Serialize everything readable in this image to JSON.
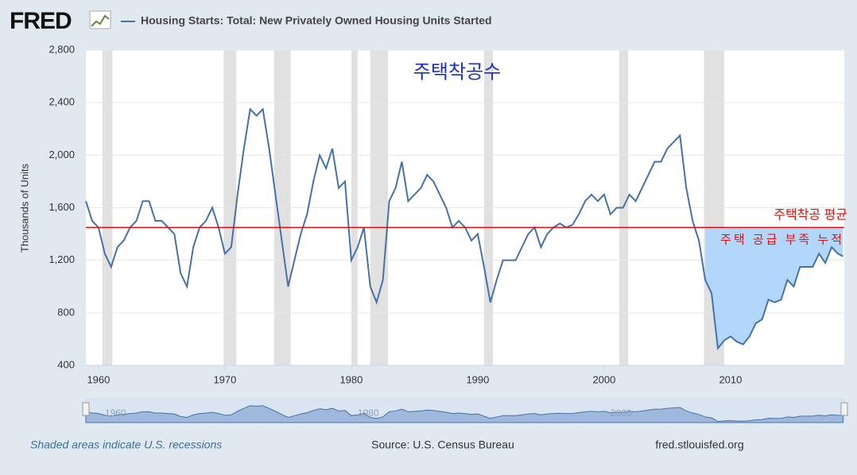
{
  "chart_data": {
    "type": "line",
    "logo": "FRED",
    "series": [
      {
        "name": "Housing Starts: Total: New Privately Owned Housing Units Started",
        "color": "#4572a7",
        "x": [
          1959.0,
          1959.5,
          1960.0,
          1960.5,
          1961.0,
          1961.5,
          1962.0,
          1962.5,
          1963.0,
          1963.5,
          1964.0,
          1964.5,
          1965.0,
          1965.5,
          1966.0,
          1966.5,
          1967.0,
          1967.5,
          1968.0,
          1968.5,
          1969.0,
          1969.5,
          1970.0,
          1970.5,
          1971.0,
          1971.5,
          1972.0,
          1972.5,
          1973.0,
          1973.5,
          1974.0,
          1974.5,
          1975.0,
          1975.5,
          1976.0,
          1976.5,
          1977.0,
          1977.5,
          1978.0,
          1978.5,
          1979.0,
          1979.5,
          1980.0,
          1980.5,
          1981.0,
          1981.5,
          1982.0,
          1982.5,
          1983.0,
          1983.5,
          1984.0,
          1984.5,
          1985.0,
          1985.5,
          1986.0,
          1986.5,
          1987.0,
          1987.5,
          1988.0,
          1988.5,
          1989.0,
          1989.5,
          1990.0,
          1990.5,
          1991.0,
          1991.5,
          1992.0,
          1992.5,
          1993.0,
          1993.5,
          1994.0,
          1994.5,
          1995.0,
          1995.5,
          1996.0,
          1996.5,
          1997.0,
          1997.5,
          1998.0,
          1998.5,
          1999.0,
          1999.5,
          2000.0,
          2000.5,
          2001.0,
          2001.5,
          2002.0,
          2002.5,
          2003.0,
          2003.5,
          2004.0,
          2004.5,
          2005.0,
          2005.5,
          2006.0,
          2006.5,
          2007.0,
          2007.5,
          2008.0,
          2008.5,
          2009.0,
          2009.5,
          2010.0,
          2010.5,
          2011.0,
          2011.5,
          2012.0,
          2012.5,
          2013.0,
          2013.5,
          2014.0,
          2014.5,
          2015.0,
          2015.5,
          2016.0,
          2016.5,
          2017.0,
          2017.5,
          2018.0,
          2018.5,
          2018.9
        ],
        "values": [
          1650,
          1500,
          1450,
          1250,
          1150,
          1300,
          1350,
          1450,
          1500,
          1650,
          1650,
          1500,
          1500,
          1450,
          1400,
          1100,
          1000,
          1300,
          1450,
          1500,
          1600,
          1450,
          1250,
          1300,
          1700,
          2050,
          2350,
          2300,
          2350,
          2050,
          1700,
          1350,
          1000,
          1200,
          1400,
          1550,
          1800,
          2000,
          1900,
          2050,
          1750,
          1800,
          1200,
          1300,
          1450,
          1000,
          880,
          1050,
          1650,
          1750,
          1950,
          1650,
          1700,
          1750,
          1850,
          1800,
          1700,
          1600,
          1450,
          1500,
          1450,
          1350,
          1400,
          1150,
          880,
          1050,
          1200,
          1200,
          1200,
          1300,
          1400,
          1450,
          1300,
          1400,
          1450,
          1480,
          1450,
          1470,
          1550,
          1650,
          1700,
          1650,
          1700,
          1550,
          1600,
          1600,
          1700,
          1650,
          1750,
          1850,
          1950,
          1950,
          2050,
          2100,
          2150,
          1750,
          1500,
          1350,
          1050,
          950,
          530,
          590,
          620,
          580,
          560,
          620,
          720,
          750,
          900,
          880,
          900,
          1050,
          1000,
          1150,
          1150,
          1150,
          1250,
          1180,
          1300,
          1250,
          1230
        ]
      }
    ],
    "y_axis_label": "Thousands of Units",
    "xlim": [
      1959,
      2019
    ],
    "xticks": [
      1960,
      1970,
      1980,
      1990,
      2000,
      2010
    ],
    "ylim": [
      400,
      2800
    ],
    "yticks": [
      400,
      800,
      {
        "value": 1200,
        "label": "1,200"
      },
      {
        "value": 1600,
        "label": "1,600"
      },
      {
        "value": 2000,
        "label": "2,000"
      },
      {
        "value": 2400,
        "label": "2,400"
      },
      {
        "value": 2800,
        "label": "2,800"
      }
    ],
    "grid": true,
    "recessions": [
      [
        1960.3,
        1961.1
      ],
      [
        1969.9,
        1970.9
      ],
      [
        1973.9,
        1975.2
      ],
      [
        1980.0,
        1980.5
      ],
      [
        1981.5,
        1982.9
      ],
      [
        1990.5,
        1991.2
      ],
      [
        2001.2,
        2001.9
      ],
      [
        2007.9,
        2009.5
      ]
    ],
    "average_line": {
      "value": 1450,
      "color": "#e01010",
      "label": "주택착공 평균"
    },
    "shortage_area": {
      "start": 2008.0,
      "label": "주택 공급 부족 누적",
      "color": "#b3d7fb"
    },
    "annotation": "주택착공수",
    "navigator_labels": [
      {
        "value": 1960,
        "label": "1960"
      },
      {
        "value": 1980,
        "label": "1980"
      },
      {
        "value": 2000,
        "label": "2000"
      }
    ],
    "footer_note": "Shaded areas indicate U.S. recessions",
    "source": "Source: U.S. Census Bureau",
    "site": "fred.stlouisfed.org"
  }
}
